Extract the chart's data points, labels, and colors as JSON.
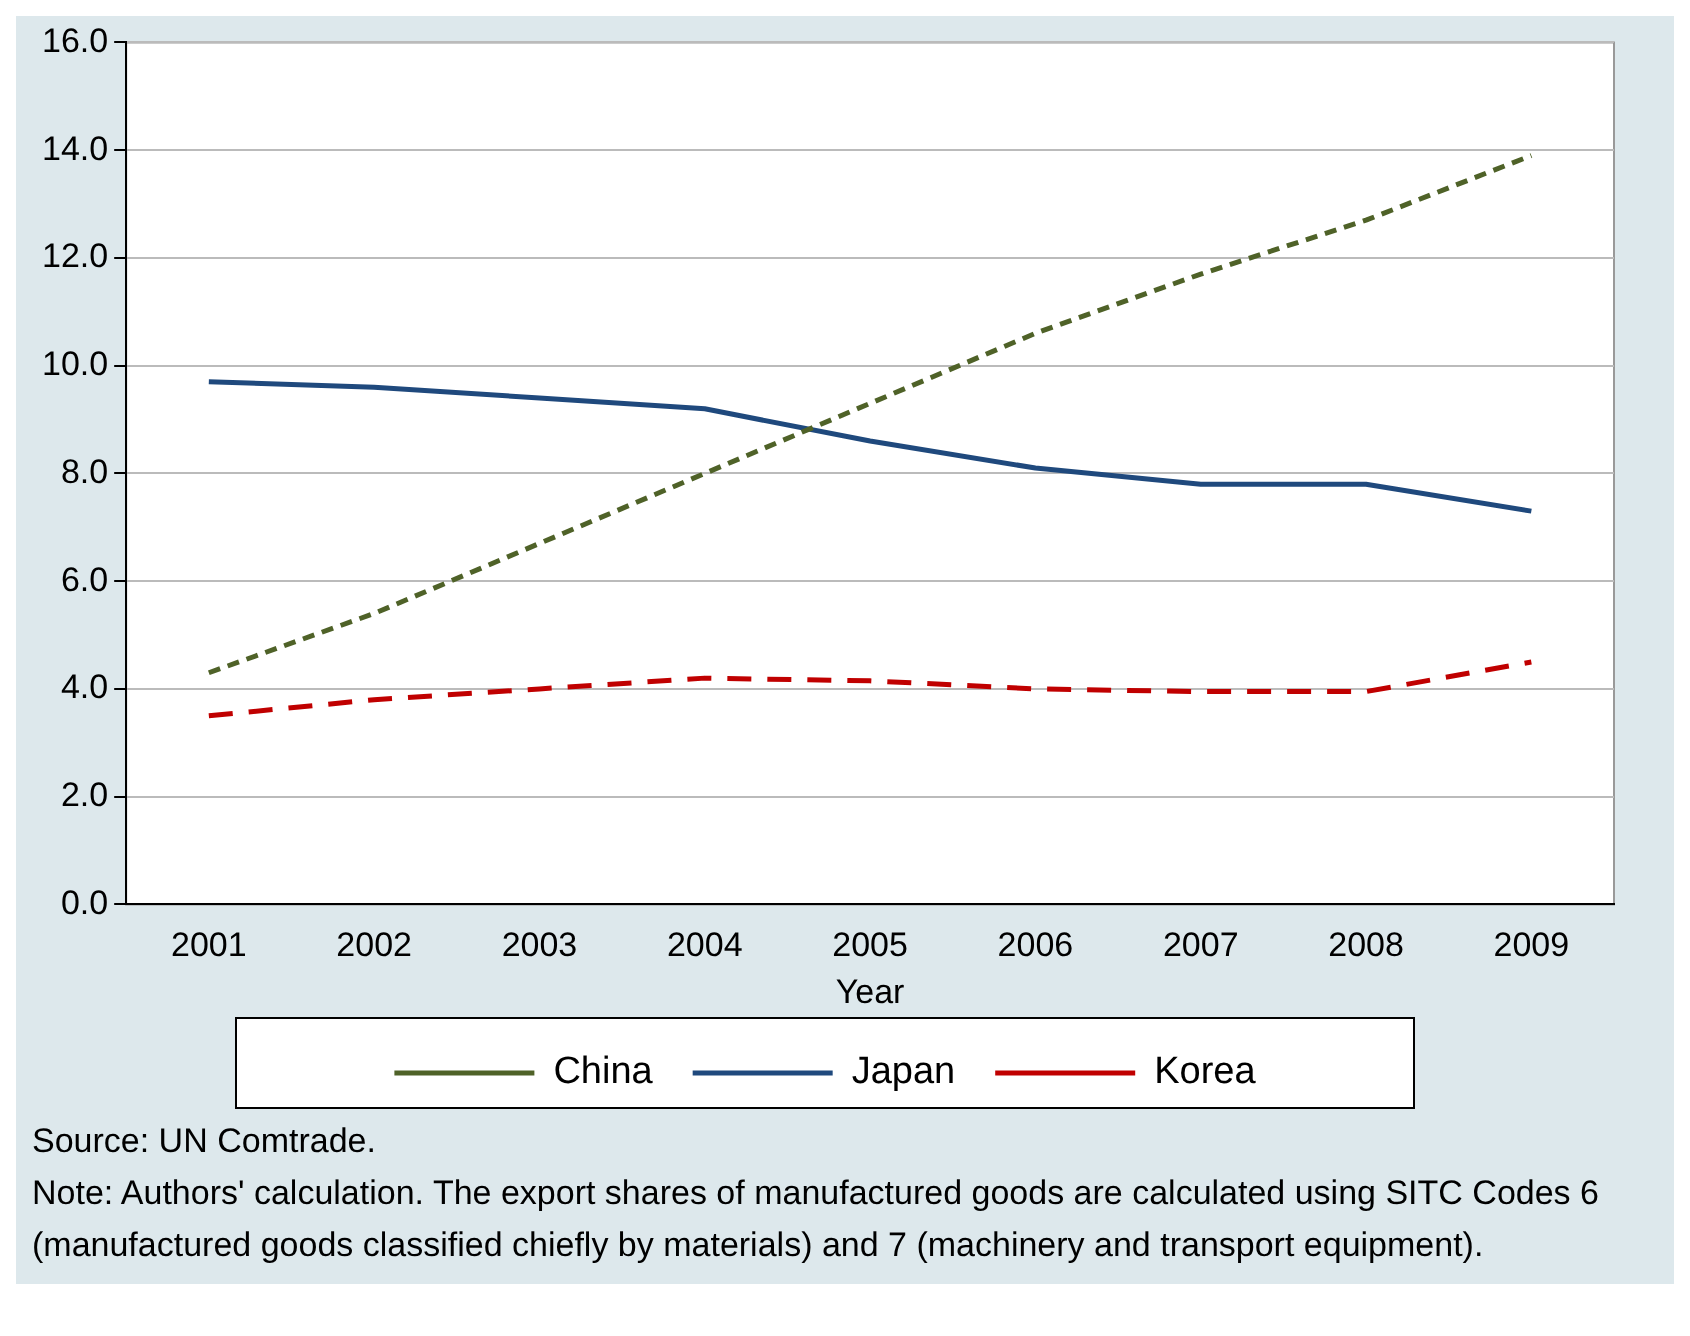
{
  "chart_data": {
    "type": "line",
    "xlabel": "Year",
    "categories": [
      "2001",
      "2002",
      "2003",
      "2004",
      "2005",
      "2006",
      "2007",
      "2008",
      "2009"
    ],
    "series": [
      {
        "name": "China",
        "color": "#4f6228",
        "line_style": "dashed",
        "values": [
          4.3,
          5.4,
          6.7,
          8.0,
          9.3,
          10.6,
          11.7,
          12.7,
          13.9
        ]
      },
      {
        "name": "Japan",
        "color": "#1f497d",
        "line_style": "solid",
        "values": [
          9.7,
          9.6,
          9.4,
          9.2,
          8.6,
          8.1,
          7.8,
          7.8,
          7.3
        ]
      },
      {
        "name": "Korea",
        "color": "#c00000",
        "line_style": "dashed",
        "values": [
          3.5,
          3.8,
          4.0,
          4.2,
          4.15,
          4.0,
          3.95,
          3.95,
          4.5
        ]
      }
    ],
    "ylim": [
      0,
      16
    ],
    "yticks": [
      {
        "value": 0,
        "label": "0.0"
      },
      {
        "value": 2,
        "label": "2.0"
      },
      {
        "value": 4,
        "label": "4.0"
      },
      {
        "value": 6,
        "label": "6.0"
      },
      {
        "value": 8,
        "label": "8.0"
      },
      {
        "value": 10,
        "label": "10.0"
      },
      {
        "value": 12,
        "label": "12.0"
      },
      {
        "value": 14,
        "label": "14.0"
      },
      {
        "value": 16,
        "label": "16.0"
      }
    ],
    "grid": "y",
    "legend": "bottom",
    "marker": "none",
    "annotations": [
      "Source: UN Comtrade.",
      "Note: Authors' calculation.  The export shares of manufactured goods are calculated using SITC Codes 6 (manufactured goods classified chiefly by materials) and 7 (machinery and transport equipment)."
    ]
  }
}
